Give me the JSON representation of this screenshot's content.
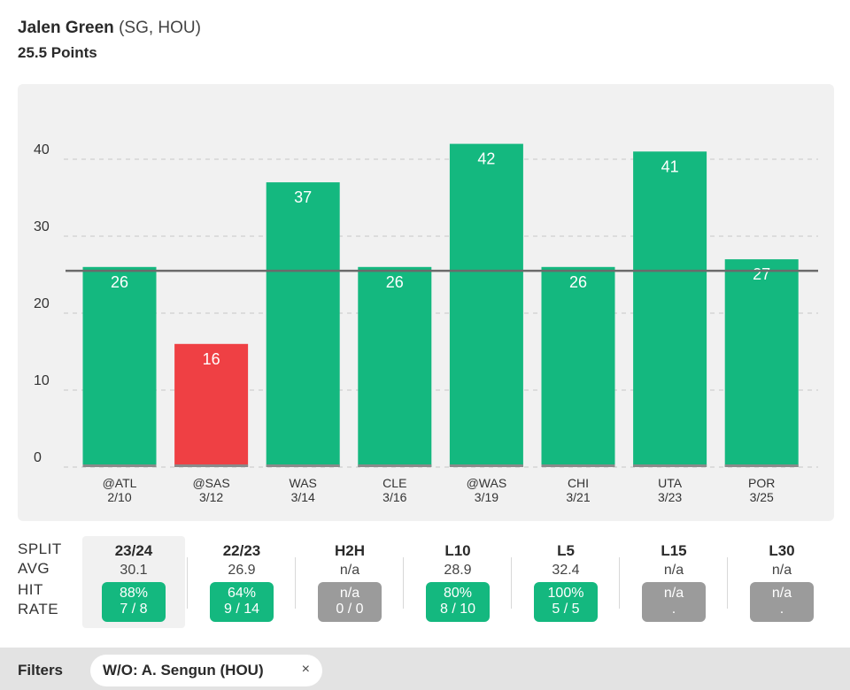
{
  "header": {
    "player_name": "Jalen Green",
    "player_meta": "(SG, HOU)",
    "prop_line": "25.5 Points"
  },
  "colors": {
    "hit": "#14b87f",
    "miss": "#ef4044",
    "line": "#6b6b6b",
    "grid": "#cfcfcf",
    "axis_text": "#333333",
    "label_text": "#ffffff"
  },
  "chart_data": {
    "type": "bar",
    "title": "Jalen Green Points",
    "categories": [
      "@ATL",
      "@SAS",
      "WAS",
      "CLE",
      "@WAS",
      "CHI",
      "UTA",
      "POR"
    ],
    "dates": [
      "2/10",
      "3/12",
      "3/14",
      "3/16",
      "3/19",
      "3/21",
      "3/23",
      "3/25"
    ],
    "values": [
      26,
      16,
      37,
      26,
      42,
      26,
      41,
      27
    ],
    "threshold": 25.5,
    "ylim": [
      0,
      42
    ],
    "yticks": [
      0,
      10,
      20,
      30,
      40
    ],
    "xlabel": "",
    "ylabel": "",
    "grid": true
  },
  "splits": {
    "row_labels": {
      "split": "SPLIT",
      "avg": "AVG",
      "hit_rate_1": "HIT",
      "hit_rate_2": "RATE"
    },
    "columns": [
      {
        "name": "23/24",
        "avg": "30.1",
        "pct": "88%",
        "frac": "7 / 8",
        "status": "green",
        "active": true
      },
      {
        "name": "22/23",
        "avg": "26.9",
        "pct": "64%",
        "frac": "9 / 14",
        "status": "green",
        "active": false
      },
      {
        "name": "H2H",
        "avg": "n/a",
        "pct": "n/a",
        "frac": "0 / 0",
        "status": "gray",
        "active": false
      },
      {
        "name": "L10",
        "avg": "28.9",
        "pct": "80%",
        "frac": "8 / 10",
        "status": "green",
        "active": false
      },
      {
        "name": "L5",
        "avg": "32.4",
        "pct": "100%",
        "frac": "5 / 5",
        "status": "green",
        "active": false
      },
      {
        "name": "L15",
        "avg": "n/a",
        "pct": "n/a",
        "frac": ".",
        "status": "gray",
        "active": false
      },
      {
        "name": "L30",
        "avg": "n/a",
        "pct": "n/a",
        "frac": ".",
        "status": "gray",
        "active": false
      }
    ]
  },
  "filters": {
    "label": "Filters",
    "chip_label": "W/O: A. Sengun (HOU)",
    "chip_close": "×"
  }
}
